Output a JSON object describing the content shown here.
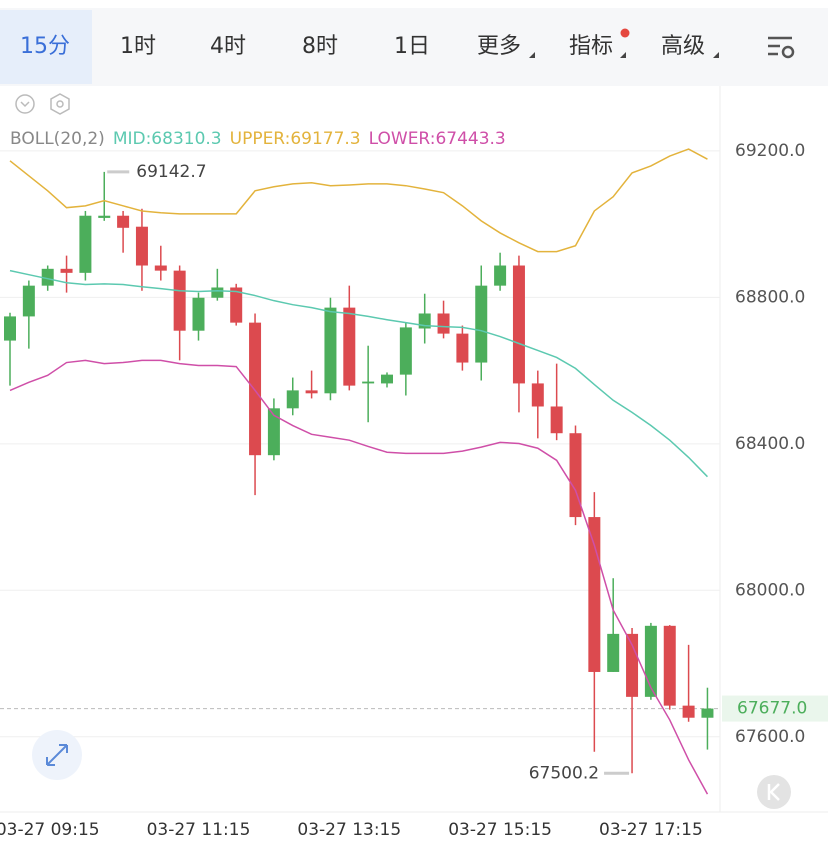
{
  "tabs": [
    "15分",
    "1时",
    "4时",
    "8时",
    "1日",
    "更多",
    "指标",
    "高级"
  ],
  "chart_data": {
    "type": "candlestick",
    "indicator": "BOLL(20,2)",
    "categories": [
      null,
      null,
      "03-27 09:15",
      null,
      null,
      null,
      null,
      null,
      null,
      null,
      "03-27 11:15",
      null,
      null,
      null,
      null,
      null,
      null,
      null,
      "03-27 13:15",
      null,
      null,
      null,
      null,
      null,
      null,
      null,
      "03-27 15:15",
      null,
      null,
      null,
      null,
      null,
      null,
      null,
      "03-27 17:15",
      null,
      null,
      null
    ],
    "ohlc": {
      "open": [
        68682,
        68748,
        68832,
        68878,
        68867,
        69017,
        69023,
        68993,
        68887,
        68873,
        68709,
        68799,
        68827,
        68731,
        68369,
        68497,
        68546,
        68538,
        68772,
        68565,
        68565,
        68589,
        68715,
        68756,
        68701,
        68622,
        68832,
        68887,
        68565,
        68502,
        68429,
        68200,
        67777,
        67881,
        67709,
        67903,
        67685,
        67652
      ],
      "high": [
        68758,
        68846,
        68887,
        68914,
        69036,
        69142.7,
        69036,
        69042,
        68941,
        68887,
        68813,
        68878,
        68837,
        68756,
        68524,
        68581,
        68600,
        68799,
        68832,
        68668,
        68595,
        68731,
        68810,
        68791,
        68723,
        68887,
        68922,
        68914,
        68600,
        68619,
        68450,
        68268,
        68033,
        67897,
        67911,
        67905,
        67851,
        67734
      ],
      "low": [
        68559,
        68660,
        68818,
        68813,
        68846,
        69009,
        68922,
        68818,
        68846,
        68628,
        68682,
        68791,
        68723,
        68260,
        68355,
        68478,
        68524,
        68519,
        68546,
        68459,
        68554,
        68532,
        68674,
        68688,
        68600,
        68573,
        68818,
        68486,
        68415,
        68410,
        68178,
        67559,
        67777,
        67500.2,
        67701,
        67674,
        67641,
        67565
      ],
      "close": [
        68748,
        68832,
        68878,
        68867,
        69023,
        69023,
        68990,
        68887,
        68873,
        68709,
        68799,
        68827,
        68731,
        68369,
        68497,
        68546,
        68538,
        68772,
        68559,
        68570,
        68589,
        68718,
        68756,
        68701,
        68622,
        68832,
        68887,
        68565,
        68502,
        68429,
        68200,
        67777,
        67881,
        67709,
        67903,
        67685,
        67652,
        67677
      ]
    },
    "up_color": "#4cae5b",
    "down_color": "#dc4a4f",
    "overlays": [
      {
        "name": "MID",
        "legend": "MID:68310.3",
        "color": "#5cc9b0",
        "values": [
          68873,
          68862,
          68851,
          68840,
          68835,
          68837,
          68835,
          68829,
          68824,
          68818,
          68816,
          68818,
          68816,
          68805,
          68791,
          68780,
          68772,
          68761,
          68756,
          68748,
          68739,
          68731,
          68723,
          68720,
          68718,
          68709,
          68693,
          68674,
          68655,
          68636,
          68606,
          68562,
          68519,
          68486,
          68450,
          68410,
          68363,
          68310.3
        ]
      },
      {
        "name": "UPPER",
        "legend": "UPPER:69177.3",
        "color": "#e3b33c",
        "values": [
          69173,
          69132,
          69091,
          69045,
          69050,
          69064,
          69050,
          69036,
          69031,
          69028,
          69028,
          69028,
          69028,
          69091,
          69102,
          69110,
          69113,
          69105,
          69107,
          69110,
          69110,
          69105,
          69096,
          69086,
          69050,
          69009,
          68976,
          68949,
          68925,
          68925,
          68941,
          69036,
          69075,
          69140,
          69159,
          69186,
          69205,
          69177.3
        ]
      },
      {
        "name": "LOWER",
        "legend": "LOWER:67443.3",
        "color": "#cf4fa8",
        "values": [
          68546,
          68568,
          68587,
          68622,
          68628,
          68619,
          68622,
          68628,
          68628,
          68619,
          68614,
          68614,
          68611,
          68546,
          68478,
          68450,
          68426,
          68418,
          68410,
          68393,
          68377,
          68374,
          68374,
          68374,
          68380,
          68391,
          68404,
          68401,
          68388,
          68355,
          68273,
          68123,
          67946,
          67851,
          67734,
          67646,
          67537,
          67443.3
        ]
      }
    ],
    "last_price": {
      "value": 67677,
      "label": "67677.0"
    },
    "ylim": [
      67400,
      69380
    ],
    "yticks": [
      {
        "value": 67600,
        "label": "67600.0"
      },
      {
        "value": 68000,
        "label": "68000.0"
      },
      {
        "value": 68400,
        "label": "68400.0"
      },
      {
        "value": 68800,
        "label": "68800.0"
      },
      {
        "value": 69200,
        "label": "69200.0"
      }
    ],
    "grid": true
  }
}
